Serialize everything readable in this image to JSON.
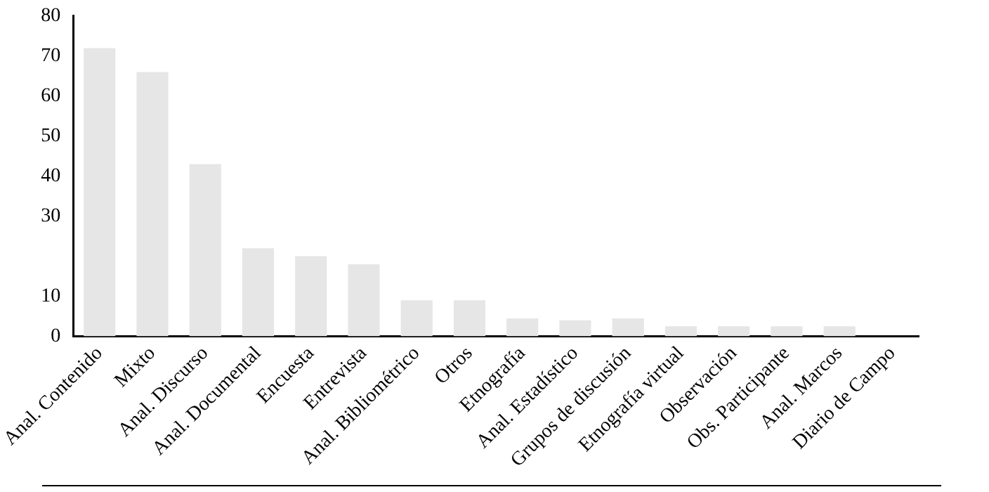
{
  "chart_data": {
    "type": "bar",
    "categories": [
      "Anal. Contenido",
      "Mixto",
      "Anal. Discurso",
      "Anal. Documental",
      "Encuesta",
      "Entrevista",
      "Anal. Bibliométrico",
      "Otros",
      "Etnografía",
      "Anal. Estadístico",
      "Grupos de discusión",
      "Etnografía virtual",
      "Observación",
      "Obs. Participante",
      "Anal. Marcos",
      "Diario de Campo"
    ],
    "values": [
      72,
      66,
      43,
      22,
      20,
      18,
      9,
      9,
      4.5,
      4,
      4.5,
      2.5,
      2.5,
      2.5,
      2.5,
      0
    ],
    "color": "#e6e6e6",
    "ylim": [
      0,
      80
    ],
    "yticks": [
      0,
      10,
      30,
      40,
      50,
      60,
      70,
      80
    ],
    "grid": false,
    "legend": false
  }
}
